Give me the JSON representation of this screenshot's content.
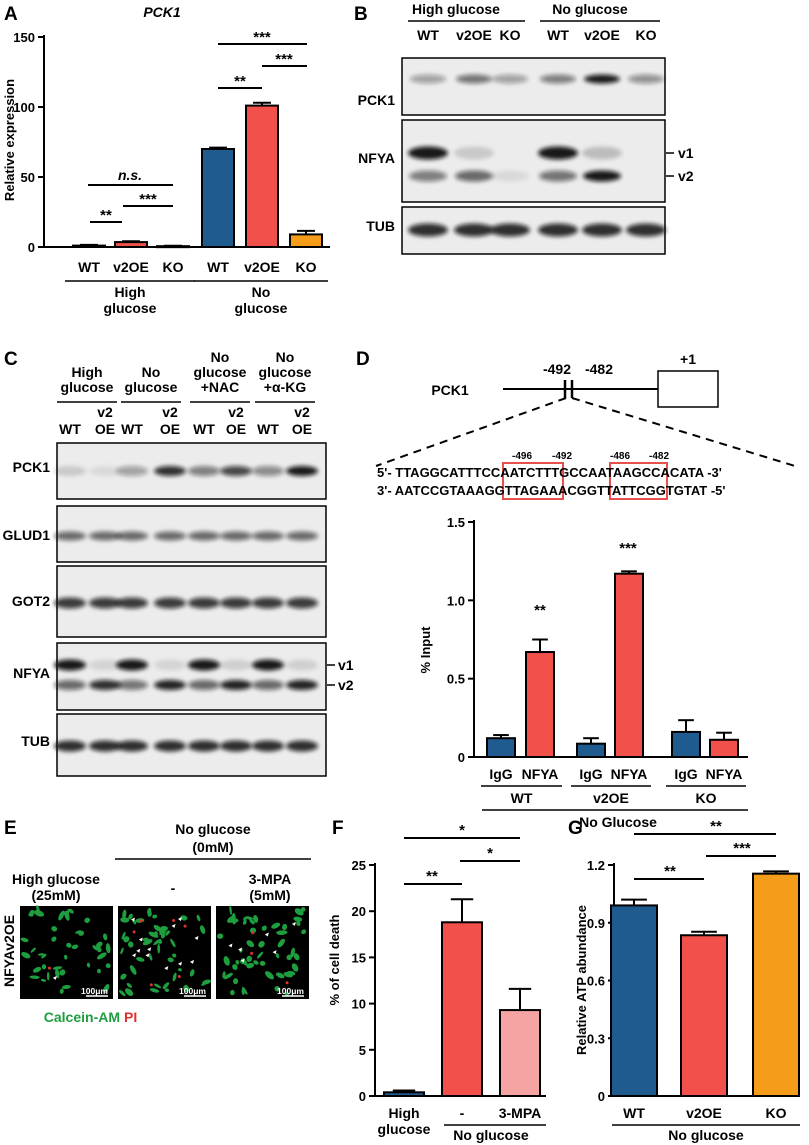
{
  "colors": {
    "wt": "#1f5b8e",
    "v2oe": "#f2504b",
    "ko": "#f59c1a",
    "mpa": "#f6a3a3",
    "sig_box": "#e8504b",
    "calcein": "#1e9e3e",
    "pi": "#e0302c"
  },
  "panelA": {
    "letter": "A",
    "title": "PCK1",
    "groups": [
      {
        "label_lines": [
          "High",
          "glucose"
        ],
        "bars": [
          {
            "label": "WT",
            "value": 1.0,
            "err": 0.5,
            "color": "wt"
          },
          {
            "label": "v2OE",
            "value": 3.5,
            "err": 0.6,
            "color": "v2oe"
          },
          {
            "label": "KO",
            "value": 0.6,
            "err": 0.3,
            "color": "ko"
          }
        ]
      },
      {
        "label_lines": [
          "No",
          "glucose"
        ],
        "bars": [
          {
            "label": "WT",
            "value": 70,
            "err": 1.0,
            "color": "wt"
          },
          {
            "label": "v2OE",
            "value": 101,
            "err": 2.0,
            "color": "v2oe"
          },
          {
            "label": "KO",
            "value": 9,
            "err": 2.5,
            "color": "ko"
          }
        ]
      }
    ],
    "chart_data": {
      "type": "bar",
      "ylabel": "Relative expression",
      "ylim": [
        0,
        150
      ],
      "yticks": [
        0,
        50,
        100,
        150
      ]
    },
    "sig": {
      "ns": "n.s.",
      "two": "**",
      "three": "***"
    }
  },
  "panelB": {
    "letter": "B",
    "conditions": [
      "High glucose",
      "No glucose"
    ],
    "lanes": [
      "WT",
      "v2OE",
      "KO",
      "WT",
      "v2OE",
      "KO"
    ],
    "rows": [
      "PCK1",
      "NFYA",
      "TUB"
    ],
    "isoforms": [
      "v1",
      "v2"
    ]
  },
  "panelC": {
    "letter": "C",
    "conditions": [
      [
        "High",
        "glucose"
      ],
      [
        "No",
        "glucose"
      ],
      [
        "No",
        "glucose",
        "+NAC"
      ],
      [
        "No",
        "glucose",
        "+α-KG"
      ]
    ],
    "lanes_top": [
      "",
      "v2",
      "",
      "v2",
      "",
      "v2",
      "",
      "v2"
    ],
    "lanes_bottom": [
      "WT",
      "OE",
      "WT",
      "OE",
      "WT",
      "OE",
      "WT",
      "OE"
    ],
    "rows": [
      "PCK1",
      "GLUD1",
      "GOT2",
      "NFYA",
      "TUB"
    ],
    "isoforms": [
      "v1",
      "v2"
    ]
  },
  "panelD": {
    "letter": "D",
    "gene": "PCK1",
    "positions": {
      "a": "-492",
      "b": "-482",
      "tss": "+1"
    },
    "small_pos": [
      "-496",
      "-492",
      "-486",
      "-482"
    ],
    "seq_top": [
      "5'- TTAGGCATTT",
      "CCAAT",
      "CTTTG",
      "CCAAT",
      "AAGCCACATA -3'"
    ],
    "seq_bottom": [
      "3'- AATCCGTAAA",
      "GGTTA",
      "GAAAC",
      "GGTTA",
      "TTCGGTGTAT -5'"
    ],
    "groups": [
      {
        "label": "WT",
        "bars": [
          {
            "label": "IgG",
            "value": 0.12,
            "err": 0.02,
            "color": "wt"
          },
          {
            "label": "NFYA",
            "value": 0.67,
            "err": 0.08,
            "color": "v2oe"
          }
        ]
      },
      {
        "label": "v2OE",
        "bars": [
          {
            "label": "IgG",
            "value": 0.085,
            "err": 0.035,
            "color": "wt"
          },
          {
            "label": "NFYA",
            "value": 1.17,
            "err": 0.015,
            "color": "v2oe"
          }
        ]
      },
      {
        "label": "KO",
        "bars": [
          {
            "label": "IgG",
            "value": 0.16,
            "err": 0.075,
            "color": "wt"
          },
          {
            "label": "NFYA",
            "value": 0.11,
            "err": 0.045,
            "color": "v2oe"
          }
        ]
      }
    ],
    "chart_data": {
      "type": "bar",
      "ylabel": "% Input",
      "ylim": [
        0,
        1.5
      ],
      "yticks": [
        0,
        0.5,
        1.0,
        1.5
      ],
      "yticklabels": [
        "0",
        "0.5",
        "1.0",
        "1.5"
      ]
    },
    "sig": [
      "**",
      "***"
    ],
    "footer": "No Glucose"
  },
  "panelE": {
    "letter": "E",
    "row_label": "NFYAv2OE",
    "header_top": [
      "No glucose",
      "(0mM)"
    ],
    "cols": [
      [
        "High glucose",
        "(25mM)"
      ],
      [
        "-",
        ""
      ],
      [
        "3-MPA",
        "(5mM)"
      ]
    ],
    "scale": "100μm",
    "stain_green": "Calcein-AM",
    "stain_red": "PI"
  },
  "panelF": {
    "letter": "F",
    "bars": [
      {
        "label_lines": [
          "High",
          "glucose"
        ],
        "value": 0.4,
        "err": 0.2,
        "color": "wt"
      },
      {
        "label_lines": [
          "-"
        ],
        "value": 18.8,
        "err": 2.5,
        "color": "v2oe"
      },
      {
        "label_lines": [
          "3-MPA"
        ],
        "value": 9.3,
        "err": 2.3,
        "color": "mpa"
      }
    ],
    "chart_data": {
      "type": "bar",
      "ylabel": "% of  cell death",
      "ylim": [
        0,
        25
      ],
      "yticks": [
        0,
        5,
        10,
        15,
        20,
        25
      ]
    },
    "sig": [
      "*",
      "*",
      "**"
    ],
    "footer": "No glucose"
  },
  "panelG": {
    "letter": "G",
    "bars": [
      {
        "label": "WT",
        "value": 0.99,
        "err": 0.03,
        "color": "wt"
      },
      {
        "label": "v2OE",
        "value": 0.835,
        "err": 0.018,
        "color": "v2oe"
      },
      {
        "label": "KO",
        "value": 1.155,
        "err": 0.012,
        "color": "ko"
      }
    ],
    "chart_data": {
      "type": "bar",
      "ylabel": "Relative ATP abundance",
      "ylim": [
        0,
        1.2
      ],
      "yticks": [
        0,
        0.3,
        0.6,
        0.9,
        1.2
      ],
      "yticklabels": [
        "0",
        "0.3",
        "0.6",
        "0.9",
        "1.2"
      ]
    },
    "sig": [
      "**",
      "**",
      "***"
    ],
    "footer": "No glucose"
  }
}
